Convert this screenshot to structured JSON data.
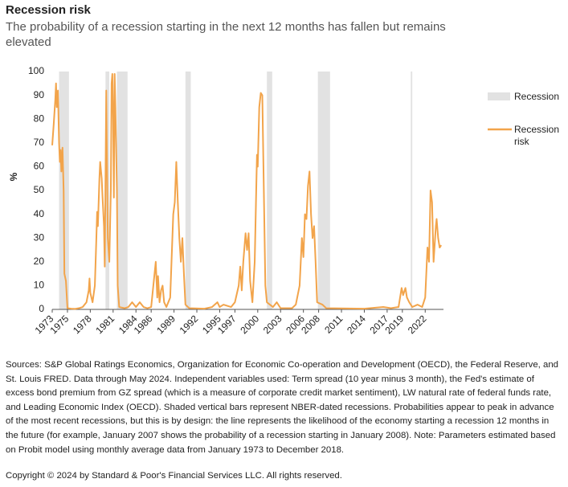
{
  "chart_data": {
    "type": "line",
    "title": "Recession risk",
    "subtitle": "The probability of a recession starting in the next 12 months has fallen but remains elevated",
    "y_label": "%",
    "x": [
      1973.0,
      1973.2,
      1973.4,
      1973.5,
      1973.6,
      1973.75,
      1973.9,
      1974.0,
      1974.1,
      1974.2,
      1974.35,
      1974.5,
      1974.6,
      1974.8,
      1975.0,
      1975.5,
      1976.0,
      1976.5,
      1977.0,
      1977.5,
      1977.8,
      1977.9,
      1978.0,
      1978.3,
      1978.6,
      1978.8,
      1978.9,
      1979.0,
      1979.2,
      1979.3,
      1979.5,
      1979.6,
      1979.8,
      1979.9,
      1980.0,
      1980.1,
      1980.2,
      1980.3,
      1980.5,
      1980.7,
      1980.8,
      1980.9,
      1981.0,
      1981.1,
      1981.2,
      1981.3,
      1981.5,
      1981.6,
      1981.8,
      1982.5,
      1983.0,
      1983.5,
      1984.0,
      1984.5,
      1985.0,
      1985.5,
      1986.0,
      1986.6,
      1986.8,
      1986.9,
      1987.1,
      1987.3,
      1987.5,
      1987.7,
      1988.0,
      1988.5,
      1988.9,
      1989.1,
      1989.3,
      1989.5,
      1989.7,
      1989.9,
      1990.1,
      1990.3,
      1990.5,
      1991.0,
      1993.0,
      1994.0,
      1994.7,
      1995.0,
      1995.5,
      1996.5,
      1997.0,
      1997.5,
      1997.7,
      1997.9,
      1998.1,
      1998.4,
      1998.6,
      1998.8,
      1999.0,
      1999.3,
      1999.6,
      1999.9,
      2000.0,
      2000.2,
      2000.4,
      2000.6,
      2000.8,
      2001.0,
      2001.2,
      2002.0,
      2002.5,
      2003.0,
      2004.5,
      2005.0,
      2005.5,
      2005.8,
      2006.0,
      2006.2,
      2006.4,
      2006.6,
      2006.8,
      2007.0,
      2007.2,
      2007.4,
      2007.6,
      2007.8,
      2008.5,
      2009.0,
      2014.0,
      2016.5,
      2017.5,
      2018.5,
      2018.7,
      2018.9,
      2019.1,
      2019.4,
      2019.6,
      2019.9,
      2020.3,
      2021.0,
      2021.6,
      2022.0,
      2022.3,
      2022.5,
      2022.7,
      2022.9,
      2023.1,
      2023.4,
      2023.5,
      2023.7,
      2023.9,
      2024.1
    ],
    "series": [
      {
        "name": "Recession risk",
        "color": "#f2a44b",
        "values": [
          69,
          78,
          88,
          95,
          85,
          92,
          70,
          62,
          67,
          58,
          68,
          50,
          15,
          12,
          0.5,
          0.3,
          0.2,
          0.5,
          1,
          3,
          8,
          13,
          7,
          3,
          10,
          30,
          41,
          35,
          55,
          62,
          55,
          48,
          35,
          18,
          55,
          92,
          60,
          30,
          20,
          50,
          95,
          99,
          80,
          47,
          99,
          85,
          50,
          10,
          1,
          0.5,
          1,
          3,
          1,
          3,
          1,
          0.5,
          1,
          20,
          5,
          14,
          3,
          8,
          10,
          3,
          1,
          5,
          40,
          45,
          62,
          45,
          30,
          20,
          30,
          15,
          2,
          0.5,
          0.3,
          1,
          3,
          1,
          2,
          1,
          3,
          10,
          18,
          8,
          20,
          32,
          25,
          32,
          12,
          3,
          20,
          65,
          60,
          85,
          91,
          90,
          50,
          10,
          3,
          1,
          3,
          0.5,
          0.5,
          2,
          10,
          30,
          22,
          40,
          38,
          52,
          58,
          40,
          30,
          35,
          20,
          3,
          2,
          0.5,
          0.3,
          1,
          0.5,
          1,
          5,
          9,
          6,
          9,
          5,
          3,
          1,
          2,
          1,
          5,
          26,
          20,
          50,
          45,
          20,
          35,
          38,
          30,
          26,
          27
        ]
      }
    ],
    "recessions": {
      "name": "Recession",
      "color": "#e2e2e2",
      "periods": [
        [
          1973.9,
          1975.2
        ],
        [
          1980.0,
          1980.5
        ],
        [
          1981.5,
          1982.9
        ],
        [
          1990.5,
          1991.2
        ],
        [
          2001.2,
          2001.9
        ],
        [
          2007.9,
          2009.5
        ],
        [
          2020.1,
          2020.3
        ]
      ]
    },
    "xlim": [
      1973,
      2024.4
    ],
    "xticks": [
      1973,
      1975,
      1978,
      1981,
      1984,
      1986,
      1989,
      1992,
      1995,
      1997,
      2000,
      2003,
      2006,
      2008,
      2011,
      2014,
      2017,
      2019,
      2022
    ],
    "ylim": [
      0,
      100
    ],
    "yticks": [
      0,
      10,
      20,
      30,
      40,
      50,
      60,
      70,
      80,
      90,
      100
    ],
    "grid": false,
    "legend": "right",
    "footnote": "Sources: S&P Global Ratings Economics, Organization for Economic Co-operation and Development (OECD), the Federal Reserve, and St. Louis FRED. Data through May 2024. Independent variables used: Term spread (10 year minus 3 month), the Fed's estimate of excess bond premium from GZ spread (which is a measure of corporate credit market sentiment), LW natural rate of federal funds rate, and Leading Economic Index (OECD). Shaded vertical bars represent NBER-dated recessions. Probabilities appear to peak in advance of the most recent recessions, but this is by design: the line represents the likelihood of the economy starting a recession 12 months in the future (for example, January 2007 shows the probability of a recession starting in January 2008). Note: Parameters estimated based on Probit model using monthly average data from January 1973 to December 2018.",
    "copyright": "Copyright © 2024 by Standard & Poor's Financial Services LLC. All rights reserved."
  }
}
